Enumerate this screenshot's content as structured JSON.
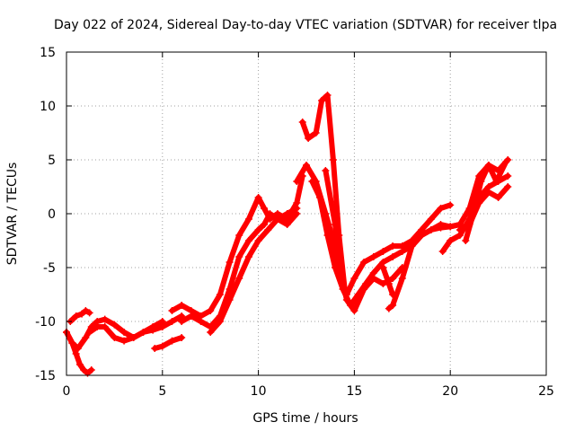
{
  "chart_data": {
    "type": "scatter",
    "title": "Day 022 of 2024, Sidereal Day-to-day VTEC variation (SDTVAR) for receiver tlpa",
    "xlabel": "GPS time / hours",
    "ylabel": "SDTVAR / TECUs",
    "xlim": [
      0,
      25
    ],
    "ylim": [
      -15,
      15
    ],
    "xticks": [
      0,
      5,
      10,
      15,
      20,
      25
    ],
    "xtick_labels": [
      "0",
      "5",
      "10",
      "15",
      "20",
      "25"
    ],
    "yticks": [
      -15,
      -10,
      -5,
      0,
      5,
      10,
      15
    ],
    "ytick_labels": [
      "-15",
      "-10",
      "-5",
      "0",
      "5",
      "10",
      "15"
    ],
    "grid": true,
    "marker": "plus",
    "color": "#ff0000",
    "series": [
      {
        "name": "trace-1",
        "x": [
          0.0,
          0.3,
          0.6,
          1.0,
          1.3,
          1.6,
          2.0,
          2.5,
          3.0,
          3.5,
          4.0,
          4.5,
          5.0,
          5.5,
          6.0
        ],
        "y": [
          -11.0,
          -12.0,
          -12.5,
          -11.5,
          -10.5,
          -10.0,
          -9.8,
          -10.3,
          -11.0,
          -11.5,
          -11.0,
          -10.8,
          -10.5,
          -10.0,
          -9.5
        ]
      },
      {
        "name": "trace-2",
        "x": [
          0.0,
          0.3,
          0.5,
          0.7,
          0.9,
          1.1,
          1.3
        ],
        "y": [
          -11.0,
          -12.0,
          -13.0,
          -14.0,
          -14.5,
          -14.8,
          -14.5
        ]
      },
      {
        "name": "trace-3",
        "x": [
          0.2,
          0.5,
          0.8,
          1.0,
          1.2
        ],
        "y": [
          -10.0,
          -9.5,
          -9.3,
          -9.0,
          -9.2
        ]
      },
      {
        "name": "trace-4",
        "x": [
          1.2,
          1.6,
          2.0,
          2.5,
          3.0,
          3.5,
          4.0,
          4.5,
          5.0
        ],
        "y": [
          -11.0,
          -10.5,
          -10.5,
          -11.5,
          -11.8,
          -11.5,
          -11.0,
          -10.5,
          -10.0
        ]
      },
      {
        "name": "trace-5",
        "x": [
          4.6,
          5.0,
          5.5,
          6.0
        ],
        "y": [
          -12.5,
          -12.3,
          -11.8,
          -11.5
        ]
      },
      {
        "name": "trace-6",
        "x": [
          5.5,
          6.0,
          6.5,
          7.0,
          7.5,
          8.0,
          8.5,
          9.0,
          9.5,
          10.0,
          10.3,
          10.6,
          11.0,
          11.5,
          12.0,
          12.3
        ],
        "y": [
          -9.0,
          -8.5,
          -9.0,
          -9.5,
          -9.0,
          -7.5,
          -4.5,
          -2.0,
          -0.5,
          1.5,
          0.5,
          -0.5,
          0.0,
          -0.5,
          1.0,
          3.5
        ]
      },
      {
        "name": "trace-7",
        "x": [
          6.0,
          6.5,
          7.0,
          7.5,
          8.0,
          8.5,
          9.0,
          9.5,
          10.0,
          10.3,
          10.6,
          11.0,
          11.5,
          12.0
        ],
        "y": [
          -10.0,
          -9.5,
          -10.0,
          -10.5,
          -9.5,
          -7.0,
          -4.0,
          -2.5,
          -1.5,
          -1.0,
          0.0,
          -0.5,
          -1.0,
          0.0
        ]
      },
      {
        "name": "trace-8",
        "x": [
          7.5,
          8.0,
          8.5,
          9.0,
          9.5,
          10.0,
          10.5,
          11.0,
          11.5,
          12.0
        ],
        "y": [
          -11.0,
          -10.0,
          -8.0,
          -6.0,
          -4.0,
          -2.5,
          -1.5,
          -0.5,
          0.0,
          0.5
        ]
      },
      {
        "name": "trace-9",
        "x": [
          12.0,
          12.5,
          13.0,
          13.5,
          14.0,
          14.3,
          14.6,
          15.0,
          15.5,
          16.0,
          16.5,
          17.0,
          17.5,
          18.0,
          18.5,
          19.0,
          19.5,
          20.0
        ],
        "y": [
          3.0,
          4.5,
          3.0,
          0.0,
          -3.0,
          -6.0,
          -7.5,
          -6.0,
          -4.5,
          -4.0,
          -3.5,
          -3.0,
          -3.0,
          -2.5,
          -1.5,
          -0.5,
          0.5,
          0.8
        ]
      },
      {
        "name": "trace-10",
        "x": [
          12.3,
          12.6,
          13.0,
          13.3,
          13.6,
          13.9,
          14.2,
          14.5
        ],
        "y": [
          8.5,
          7.0,
          7.5,
          10.5,
          11.0,
          5.0,
          -2.0,
          -7.0
        ]
      },
      {
        "name": "trace-11",
        "x": [
          12.8,
          13.2,
          13.6,
          14.0,
          14.4,
          14.8,
          15.2,
          15.6,
          16.0,
          16.5,
          17.0,
          17.5,
          18.0,
          18.5,
          19.0,
          19.5,
          20.0,
          20.5
        ],
        "y": [
          3.0,
          1.5,
          -2.0,
          -5.0,
          -7.0,
          -8.5,
          -7.5,
          -6.5,
          -5.5,
          -4.5,
          -4.0,
          -3.5,
          -3.0,
          -2.0,
          -1.5,
          -1.0,
          -1.2,
          -1.0
        ]
      },
      {
        "name": "trace-12",
        "x": [
          13.5,
          14.0,
          14.3,
          14.6,
          15.0,
          15.5,
          16.0,
          16.5,
          17.0,
          17.5
        ],
        "y": [
          4.0,
          -1.0,
          -5.5,
          -8.0,
          -9.0,
          -7.0,
          -6.0,
          -6.5,
          -6.0,
          -5.0
        ]
      },
      {
        "name": "trace-13",
        "x": [
          16.5,
          16.8,
          17.0
        ],
        "y": [
          -5.0,
          -6.5,
          -7.5
        ]
      },
      {
        "name": "trace-14",
        "x": [
          16.8,
          17.0,
          17.5,
          18.0,
          18.5,
          19.0,
          19.5,
          20.0,
          20.5,
          21.0,
          21.5,
          22.0,
          22.5,
          23.0
        ],
        "y": [
          -8.8,
          -8.5,
          -6.0,
          -3.0,
          -2.0,
          -1.5,
          -1.3,
          -1.2,
          -1.0,
          0.5,
          3.5,
          4.5,
          4.0,
          5.0
        ]
      },
      {
        "name": "trace-15",
        "x": [
          19.6,
          20.0,
          20.5,
          21.0,
          21.5,
          22.0,
          22.5,
          23.0
        ],
        "y": [
          -3.5,
          -2.5,
          -2.0,
          -0.5,
          1.5,
          2.5,
          3.0,
          3.5
        ]
      },
      {
        "name": "trace-16",
        "x": [
          20.5,
          21.0,
          21.5,
          22.0,
          22.5,
          23.0
        ],
        "y": [
          -1.5,
          -1.0,
          1.0,
          2.0,
          1.5,
          2.5
        ]
      },
      {
        "name": "trace-17",
        "x": [
          20.8,
          21.2,
          21.6,
          22.0,
          22.4,
          22.9
        ],
        "y": [
          -2.5,
          0.0,
          3.0,
          4.5,
          3.0,
          4.8
        ]
      }
    ]
  }
}
